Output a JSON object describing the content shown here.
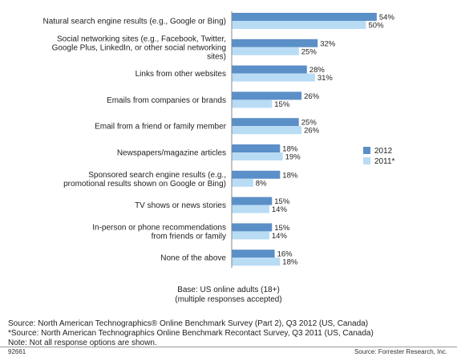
{
  "chart_data": {
    "type": "bar",
    "orientation": "horizontal",
    "categories": [
      [
        "Natural search engine results (e.g., Google or Bing)"
      ],
      [
        "Social networking sites (e.g., Facebook, Twitter,",
        "Google Plus, LinkedIn, or other social networking",
        "sites)"
      ],
      [
        "Links from other websites"
      ],
      [
        "Emails from companies or brands"
      ],
      [
        "Email from a friend or family member"
      ],
      [
        "Newspapers/magazine articles"
      ],
      [
        "Sponsored search engine results (e.g.,",
        "promotional results shown on Google or Bing)"
      ],
      [
        "TV shows or news stories"
      ],
      [
        "In-person or phone recommendations",
        "from friends or family"
      ],
      [
        "None of the above"
      ]
    ],
    "series": [
      {
        "name": "2012",
        "color": "#5b8fc7",
        "values": [
          54,
          32,
          28,
          26,
          25,
          18,
          18,
          15,
          15,
          16
        ]
      },
      {
        "name": "2011*",
        "color": "#b9dcf5",
        "values": [
          50,
          25,
          31,
          15,
          26,
          19,
          8,
          14,
          14,
          18
        ]
      }
    ],
    "value_suffix": "%",
    "legend_position": "right",
    "xlim": [
      0,
      54
    ]
  },
  "notes": {
    "base_line1": "Base: US online adults (18+)",
    "base_line2": "(multiple responses accepted)",
    "source1": "Source: North American Technographics® Online Benchmark Survey (Part 2), Q3 2012 (US, Canada)",
    "source2": "*Source: North American Technographics Online Benchmark Recontact Survey, Q3 2011 (US, Canada)",
    "source3": "Note: Not all response options are shown."
  },
  "footer": {
    "id": "92661",
    "source": "Source: Forrester Research, Inc."
  }
}
